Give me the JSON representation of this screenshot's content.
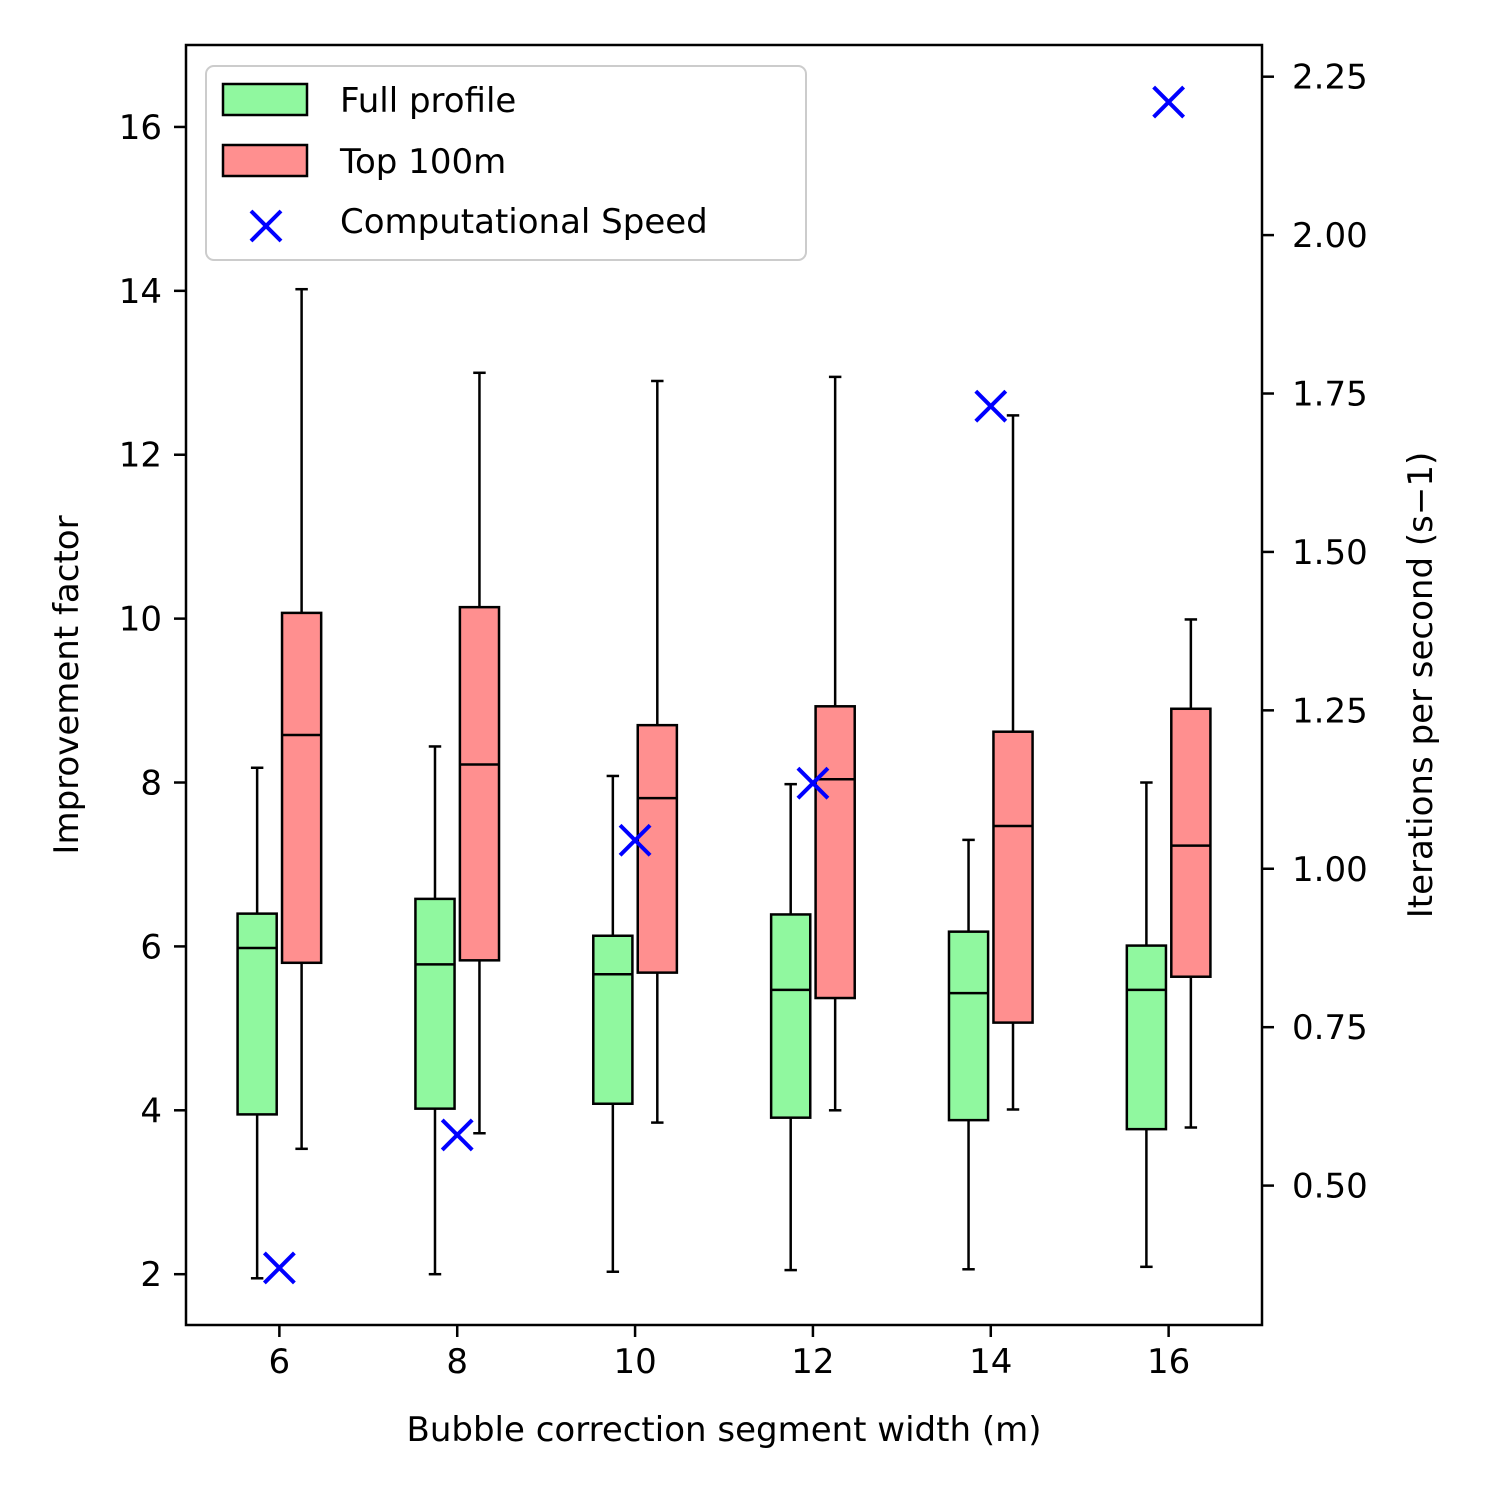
{
  "chart_data": {
    "type": "box",
    "xlabel": "Bubble correction segment width (m)",
    "ylabel": "Improvement factor",
    "y2label": "Iterations per second (s−1)",
    "xlim": [
      4.95,
      17.05
    ],
    "ylim": [
      1.38,
      17.0
    ],
    "y2lim": [
      0.28,
      2.3
    ],
    "x_ticks": [
      "6",
      "8",
      "10",
      "12",
      "14",
      "16"
    ],
    "y_ticks": [
      "2",
      "4",
      "6",
      "8",
      "10",
      "12",
      "14",
      "16"
    ],
    "y2_ticks": [
      "0.50",
      "0.75",
      "1.00",
      "1.25",
      "1.50",
      "1.75",
      "2.00",
      "2.25"
    ],
    "legend_position": "upper-left",
    "groups": [
      {
        "name": "Full profile",
        "color": "#90f89f",
        "offset": -0.25,
        "boxes": [
          {
            "x": 6,
            "whislo": 1.95,
            "q1": 3.95,
            "median": 5.98,
            "q3": 6.4,
            "whishi": 8.18
          },
          {
            "x": 8,
            "whislo": 2.0,
            "q1": 4.02,
            "median": 5.78,
            "q3": 6.58,
            "whishi": 8.44
          },
          {
            "x": 10,
            "whislo": 2.03,
            "q1": 4.08,
            "median": 5.66,
            "q3": 6.13,
            "whishi": 8.08
          },
          {
            "x": 12,
            "whislo": 2.05,
            "q1": 3.91,
            "median": 5.47,
            "q3": 6.39,
            "whishi": 7.98
          },
          {
            "x": 14,
            "whislo": 2.06,
            "q1": 3.88,
            "median": 5.43,
            "q3": 6.18,
            "whishi": 7.3
          },
          {
            "x": 16,
            "whislo": 2.09,
            "q1": 3.77,
            "median": 5.47,
            "q3": 6.01,
            "whishi": 8.0
          }
        ]
      },
      {
        "name": "Top 100m",
        "color": "#ff8f8f",
        "offset": 0.25,
        "boxes": [
          {
            "x": 6,
            "whislo": 3.53,
            "q1": 5.8,
            "median": 8.58,
            "q3": 10.07,
            "whishi": 14.02
          },
          {
            "x": 8,
            "whislo": 3.72,
            "q1": 5.83,
            "median": 8.22,
            "q3": 10.14,
            "whishi": 13.0
          },
          {
            "x": 10,
            "whislo": 3.85,
            "q1": 5.68,
            "median": 7.81,
            "q3": 8.7,
            "whishi": 12.9
          },
          {
            "x": 12,
            "whislo": 4.0,
            "q1": 5.37,
            "median": 8.04,
            "q3": 8.93,
            "whishi": 12.95
          },
          {
            "x": 14,
            "whislo": 4.01,
            "q1": 5.07,
            "median": 7.47,
            "q3": 8.62,
            "whishi": 12.48
          },
          {
            "x": 16,
            "whislo": 3.79,
            "q1": 5.63,
            "median": 7.23,
            "q3": 8.9,
            "whishi": 9.99
          }
        ]
      }
    ],
    "scatter": {
      "name": "Computational Speed",
      "color": "#0000ff",
      "marker": "x",
      "axis": "right",
      "x": [
        6,
        8,
        10,
        12,
        14,
        16
      ],
      "y": [
        0.37,
        0.58,
        1.045,
        1.135,
        1.73,
        2.21
      ]
    }
  }
}
